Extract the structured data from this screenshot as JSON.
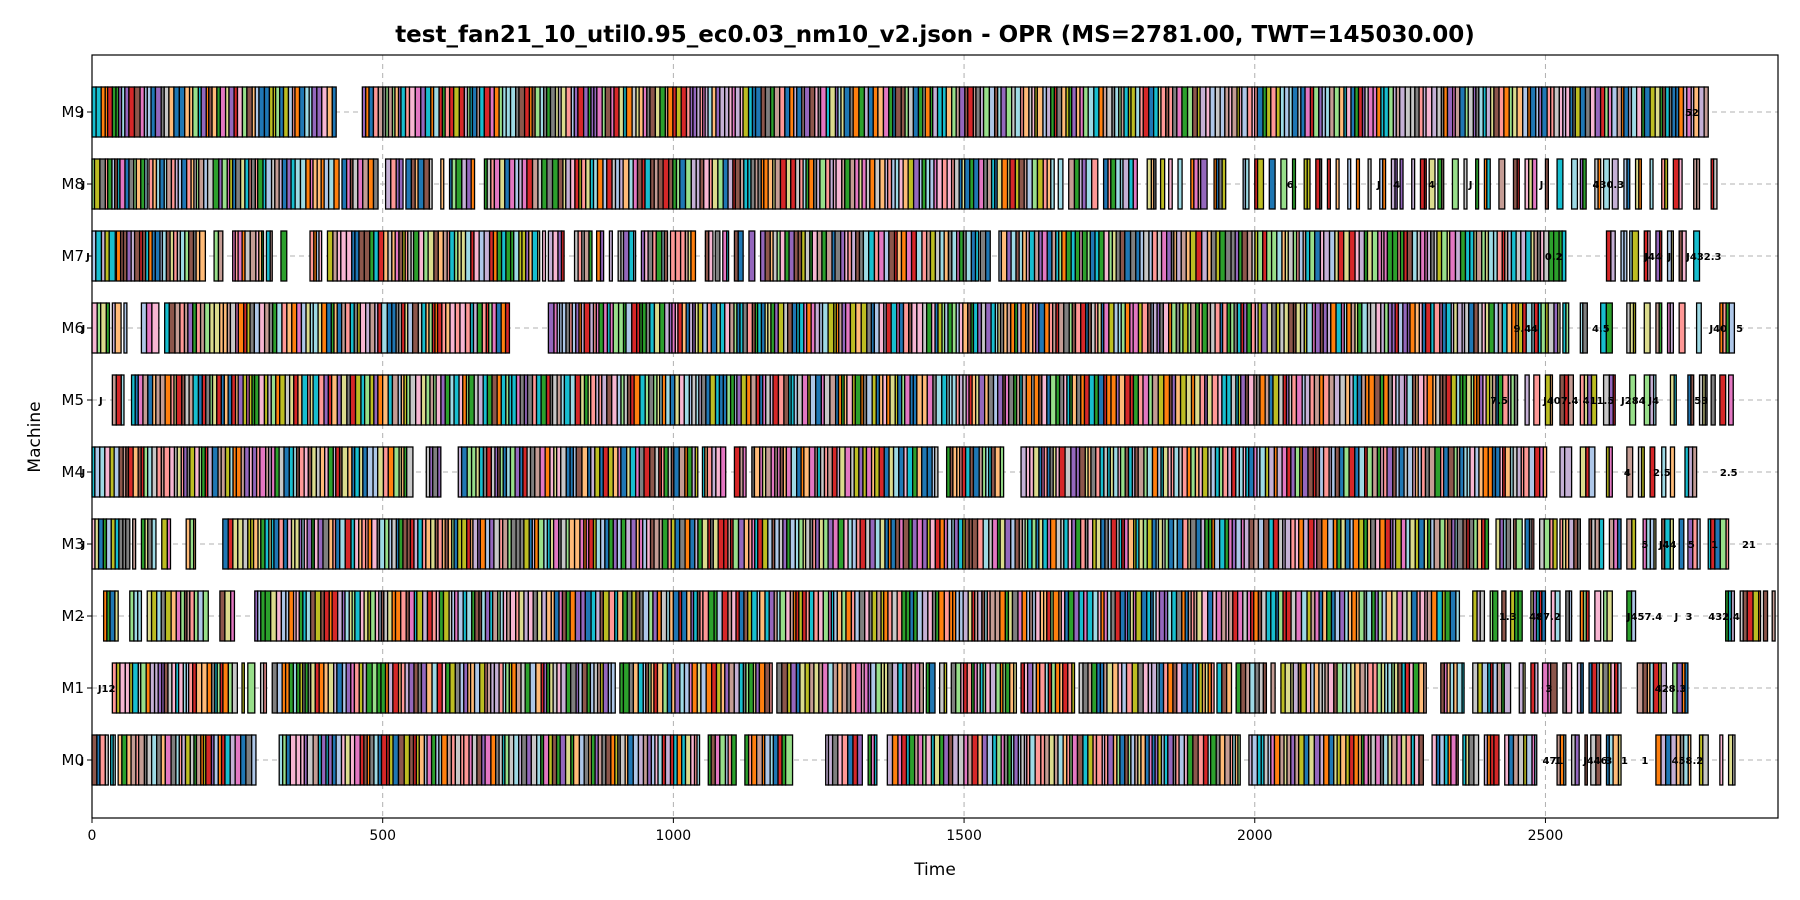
{
  "chart_data": {
    "type": "gantt",
    "title": "test_fan21_10_util0.95_ec0.03_nm10_v2.json - OPR (MS=2781.00, TWT=145030.00)",
    "xlabel": "Time",
    "ylabel": "Machine",
    "xlim": [
      0,
      2900
    ],
    "xticks": [
      0,
      500,
      1000,
      1500,
      2000,
      2500
    ],
    "grid": true,
    "machines": [
      "M0",
      "M1",
      "M2",
      "M3",
      "M4",
      "M5",
      "M6",
      "M7",
      "M8",
      "M9"
    ],
    "palette": [
      "#1f77b4",
      "#aec7e8",
      "#ff7f0e",
      "#ffbb78",
      "#2ca02c",
      "#98df8a",
      "#d62728",
      "#ff9896",
      "#9467bd",
      "#c5b0d5",
      "#8c564b",
      "#c49c94",
      "#e377c2",
      "#f7b6d2",
      "#7f7f7f",
      "#c7c7c7",
      "#bcbd22",
      "#dbdb8d",
      "#17becf",
      "#9edae5"
    ],
    "busy_intervals": {
      "M0": [
        [
          0,
          28
        ],
        [
          32,
          40
        ],
        [
          45,
          282
        ],
        [
          322,
          1045
        ],
        [
          1060,
          1108
        ],
        [
          1123,
          1205
        ],
        [
          1262,
          1325
        ],
        [
          1335,
          1350
        ],
        [
          1368,
          1975
        ],
        [
          1990,
          2290
        ],
        [
          2305,
          2350
        ],
        [
          2358,
          2385
        ],
        [
          2395,
          2420
        ],
        [
          2430,
          2485
        ],
        [
          2520,
          2535
        ],
        [
          2545,
          2558
        ],
        [
          2568,
          2572
        ],
        [
          2578,
          2595
        ],
        [
          2605,
          2630
        ],
        [
          2690,
          2750
        ],
        [
          2765,
          2780
        ],
        [
          2800,
          2805
        ],
        [
          2815,
          2826
        ]
      ],
      "M1": [
        [
          35,
          250
        ],
        [
          258,
          262
        ],
        [
          268,
          280
        ],
        [
          290,
          300
        ],
        [
          310,
          900
        ],
        [
          908,
          1170
        ],
        [
          1178,
          1430
        ],
        [
          1435,
          1450
        ],
        [
          1458,
          1470
        ],
        [
          1478,
          1590
        ],
        [
          1598,
          1690
        ],
        [
          1698,
          1930
        ],
        [
          1935,
          1960
        ],
        [
          1968,
          2020
        ],
        [
          2028,
          2035
        ],
        [
          2045,
          2295
        ],
        [
          2320,
          2360
        ],
        [
          2375,
          2440
        ],
        [
          2455,
          2465
        ],
        [
          2475,
          2487
        ],
        [
          2495,
          2520
        ],
        [
          2530,
          2545
        ],
        [
          2555,
          2565
        ],
        [
          2575,
          2630
        ],
        [
          2658,
          2708
        ],
        [
          2719,
          2745
        ]
      ],
      "M2": [
        [
          20,
          45
        ],
        [
          65,
          85
        ],
        [
          95,
          200
        ],
        [
          220,
          245
        ],
        [
          280,
          2352
        ],
        [
          2375,
          2395
        ],
        [
          2405,
          2418
        ],
        [
          2425,
          2432
        ],
        [
          2440,
          2460
        ],
        [
          2475,
          2500
        ],
        [
          2510,
          2525
        ],
        [
          2535,
          2545
        ],
        [
          2560,
          2575
        ],
        [
          2585,
          2595
        ],
        [
          2600,
          2615
        ],
        [
          2640,
          2655
        ],
        [
          2810,
          2825
        ],
        [
          2835,
          2870
        ],
        [
          2875,
          2882
        ],
        [
          2890,
          2895
        ]
      ],
      "M3": [
        [
          0,
          65
        ],
        [
          70,
          75
        ],
        [
          85,
          110
        ],
        [
          120,
          135
        ],
        [
          162,
          178
        ],
        [
          225,
          2402
        ],
        [
          2415,
          2440
        ],
        [
          2445,
          2460
        ],
        [
          2465,
          2480
        ],
        [
          2490,
          2520
        ],
        [
          2525,
          2560
        ],
        [
          2575,
          2600
        ],
        [
          2610,
          2630
        ],
        [
          2640,
          2655
        ],
        [
          2668,
          2690
        ],
        [
          2700,
          2720
        ],
        [
          2730,
          2738
        ],
        [
          2745,
          2766
        ],
        [
          2780,
          2815
        ]
      ],
      "M4": [
        [
          0,
          552
        ],
        [
          575,
          600
        ],
        [
          630,
          1042
        ],
        [
          1050,
          1090
        ],
        [
          1105,
          1125
        ],
        [
          1135,
          1455
        ],
        [
          1470,
          1568
        ],
        [
          1598,
          2502
        ],
        [
          2525,
          2545
        ],
        [
          2560,
          2585
        ],
        [
          2605,
          2615
        ],
        [
          2640,
          2650
        ],
        [
          2660,
          2670
        ],
        [
          2680,
          2688
        ],
        [
          2700,
          2707
        ],
        [
          2715,
          2722
        ],
        [
          2740,
          2760
        ]
      ],
      "M5": [
        [
          35,
          55
        ],
        [
          68,
          2452
        ],
        [
          2465,
          2472
        ],
        [
          2480,
          2490
        ],
        [
          2500,
          2512
        ],
        [
          2525,
          2548
        ],
        [
          2560,
          2588
        ],
        [
          2600,
          2620
        ],
        [
          2645,
          2655
        ],
        [
          2670,
          2690
        ],
        [
          2715,
          2725
        ],
        [
          2745,
          2755
        ],
        [
          2765,
          2778
        ],
        [
          2785,
          2792
        ],
        [
          2800,
          2810
        ],
        [
          2815,
          2823
        ]
      ],
      "M6": [
        [
          0,
          30
        ],
        [
          35,
          50
        ],
        [
          55,
          60
        ],
        [
          85,
          115
        ],
        [
          125,
          718
        ],
        [
          785,
          2525
        ],
        [
          2530,
          2540
        ],
        [
          2560,
          2572
        ],
        [
          2595,
          2615
        ],
        [
          2640,
          2655
        ],
        [
          2670,
          2680
        ],
        [
          2690,
          2700
        ],
        [
          2710,
          2720
        ],
        [
          2730,
          2740
        ],
        [
          2760,
          2768
        ],
        [
          2800,
          2825
        ]
      ],
      "M7": [
        [
          0,
          40
        ],
        [
          42,
          195
        ],
        [
          210,
          225
        ],
        [
          242,
          295
        ],
        [
          300,
          310
        ],
        [
          325,
          335
        ],
        [
          375,
          395
        ],
        [
          405,
          770
        ],
        [
          775,
          780
        ],
        [
          785,
          812
        ],
        [
          830,
          860
        ],
        [
          868,
          880
        ],
        [
          890,
          895
        ],
        [
          905,
          935
        ],
        [
          945,
          990
        ],
        [
          995,
          1038
        ],
        [
          1055,
          1068
        ],
        [
          1072,
          1080
        ],
        [
          1085,
          1095
        ],
        [
          1105,
          1120
        ],
        [
          1130,
          1140
        ],
        [
          1150,
          1525
        ],
        [
          1528,
          1545
        ],
        [
          1560,
          2535
        ],
        [
          2605,
          2620
        ],
        [
          2630,
          2640
        ],
        [
          2645,
          2660
        ],
        [
          2670,
          2680
        ],
        [
          2690,
          2700
        ],
        [
          2710,
          2720
        ],
        [
          2730,
          2742
        ],
        [
          2755,
          2765
        ]
      ],
      "M8": [
        [
          0,
          95
        ],
        [
          98,
          425
        ],
        [
          430,
          492
        ],
        [
          505,
          535
        ],
        [
          540,
          585
        ],
        [
          600,
          605
        ],
        [
          615,
          658
        ],
        [
          675,
          1655
        ],
        [
          1662,
          1670
        ],
        [
          1680,
          1730
        ],
        [
          1740,
          1798
        ],
        [
          1815,
          1830
        ],
        [
          1838,
          1845
        ],
        [
          1852,
          1858
        ],
        [
          1868,
          1875
        ],
        [
          1890,
          1918
        ],
        [
          1930,
          1950
        ],
        [
          1980,
          1990
        ],
        [
          2000,
          2015
        ],
        [
          2025,
          2035
        ],
        [
          2045,
          2055
        ],
        [
          2065,
          2070
        ],
        [
          2085,
          2095
        ],
        [
          2105,
          2115
        ],
        [
          2125,
          2130
        ],
        [
          2140,
          2145
        ],
        [
          2160,
          2165
        ],
        [
          2175,
          2180
        ],
        [
          2195,
          2200
        ],
        [
          2215,
          2225
        ],
        [
          2235,
          2245
        ],
        [
          2250,
          2255
        ],
        [
          2270,
          2275
        ],
        [
          2285,
          2295
        ],
        [
          2300,
          2310
        ],
        [
          2315,
          2325
        ],
        [
          2340,
          2350
        ],
        [
          2360,
          2365
        ],
        [
          2380,
          2385
        ],
        [
          2395,
          2405
        ],
        [
          2420,
          2430
        ],
        [
          2445,
          2455
        ],
        [
          2465,
          2485
        ],
        [
          2500,
          2505
        ],
        [
          2520,
          2530
        ],
        [
          2545,
          2555
        ],
        [
          2560,
          2570
        ],
        [
          2585,
          2595
        ],
        [
          2600,
          2610
        ],
        [
          2615,
          2625
        ],
        [
          2635,
          2645
        ],
        [
          2655,
          2665
        ],
        [
          2680,
          2685
        ],
        [
          2700,
          2710
        ],
        [
          2720,
          2735
        ],
        [
          2755,
          2765
        ],
        [
          2785,
          2795
        ]
      ],
      "M9": [
        [
          0,
          420
        ],
        [
          465,
          2780
        ]
      ]
    },
    "labels": {
      "M0": [
        [
          -20,
          "J"
        ],
        [
          2495,
          "471"
        ],
        [
          2515,
          "1"
        ],
        [
          2565,
          "J"
        ],
        [
          2571,
          "446"
        ],
        [
          2603,
          "3"
        ],
        [
          2630,
          "1"
        ],
        [
          2665,
          "1"
        ],
        [
          2717,
          "458.2"
        ]
      ],
      "M1": [
        [
          10,
          "J12"
        ],
        [
          2500,
          "3"
        ],
        [
          2688,
          "428.3"
        ]
      ],
      "M2": [
        [
          -20,
          "-"
        ],
        [
          2420,
          "1.3"
        ],
        [
          2472,
          "487.2"
        ],
        [
          2640,
          "J457.4"
        ],
        [
          2722,
          "J"
        ],
        [
          2741,
          "3"
        ],
        [
          2780,
          "432.4"
        ]
      ],
      "M3": [
        [
          -18,
          "J"
        ],
        [
          2665,
          "5"
        ],
        [
          2695,
          "J44"
        ],
        [
          2745,
          "5"
        ],
        [
          2785,
          "1"
        ],
        [
          2838,
          "21"
        ]
      ],
      "M4": [
        [
          -18,
          "J"
        ],
        [
          2635,
          "4"
        ],
        [
          2685,
          "2.5"
        ],
        [
          2800,
          "2.5"
        ]
      ],
      "M5": [
        [
          12,
          "J"
        ],
        [
          2405,
          "7.5"
        ],
        [
          2496,
          "J407.4"
        ],
        [
          2564,
          "411.5"
        ],
        [
          2630,
          "J284"
        ],
        [
          2677,
          "J4"
        ],
        [
          2756,
          "53"
        ]
      ],
      "M6": [
        [
          -18,
          "J"
        ],
        [
          2445,
          "9.4"
        ],
        [
          2475,
          "4"
        ],
        [
          2580,
          "4.5"
        ],
        [
          2782,
          "J40"
        ],
        [
          2828,
          "5"
        ]
      ],
      "M7": [
        [
          -10,
          "J"
        ],
        [
          2499,
          "0.2"
        ],
        [
          2670,
          "J44"
        ],
        [
          2710,
          "J"
        ],
        [
          2742,
          "J432.3"
        ]
      ],
      "M8": [
        [
          -18,
          "J"
        ],
        [
          2055,
          "6."
        ],
        [
          2210,
          "J"
        ],
        [
          2238,
          "4"
        ],
        [
          2298,
          "4"
        ],
        [
          2368,
          "J"
        ],
        [
          2490,
          "J"
        ],
        [
          2581,
          "430.3"
        ]
      ],
      "M9": [
        [
          -20,
          "J"
        ],
        [
          2740,
          "52"
        ]
      ]
    }
  }
}
